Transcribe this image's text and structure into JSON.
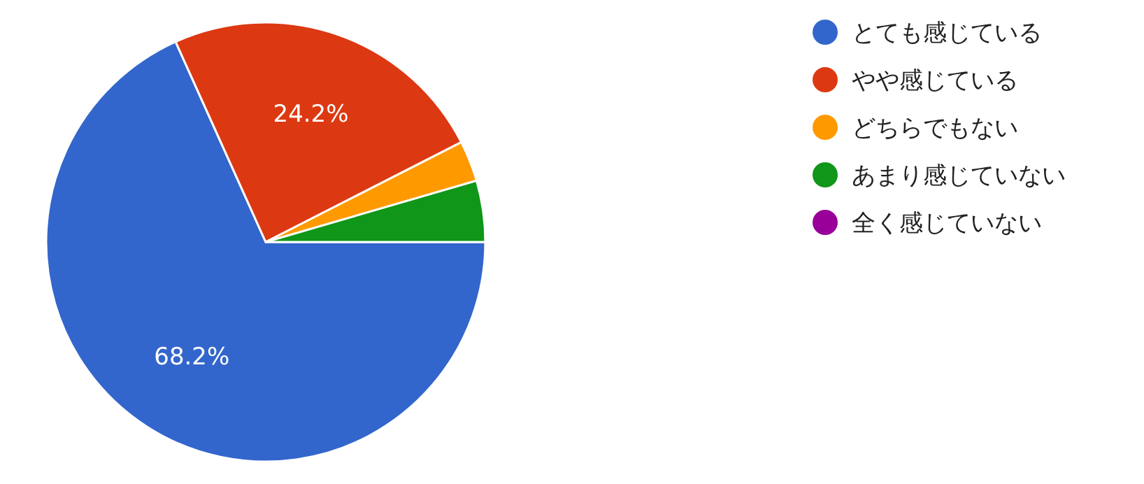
{
  "chart_data": {
    "type": "pie",
    "categories": [
      "とても感じている",
      "やや感じている",
      "どちらでもない",
      "あまり感じていない",
      "全く感じていない"
    ],
    "values": [
      68.2,
      24.2,
      3.0,
      4.5,
      0
    ],
    "colors": [
      "#3366cc",
      "#dc3912",
      "#ff9900",
      "#109618",
      "#990099"
    ],
    "value_labels": [
      "68.2%",
      "24.2%",
      null,
      null,
      null
    ],
    "legend": "right"
  }
}
